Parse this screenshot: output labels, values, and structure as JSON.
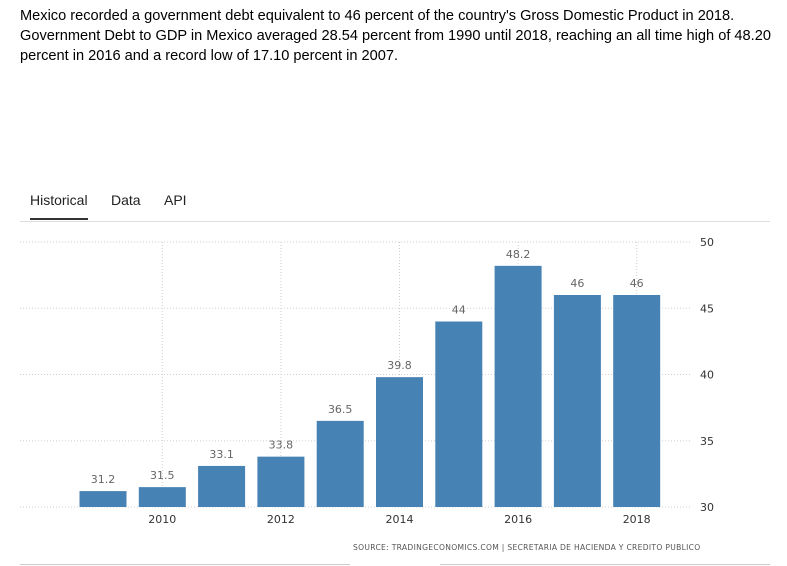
{
  "description": "Mexico recorded a government debt equivalent to 46 percent of the country's Gross Domestic Product in 2018. Government Debt to GDP in Mexico averaged 28.54 percent from 1990 until 2018, reaching an all time high of 48.20 percent in 2016 and a record low of 17.10 percent in 2007.",
  "tabs": [
    {
      "label": "Historical",
      "active": true
    },
    {
      "label": "Data",
      "active": false
    },
    {
      "label": "API",
      "active": false
    }
  ],
  "source": "SOURCE: TRADINGECONOMICS.COM | SECRETARIA DE HACIENDA Y CREDITO PUBLICO",
  "colors": {
    "bar": "#4682b4"
  },
  "chart_data": {
    "type": "bar",
    "title": "",
    "xlabel": "",
    "ylabel": "",
    "categories": [
      "2009",
      "2010",
      "2011",
      "2012",
      "2013",
      "2014",
      "2015",
      "2016",
      "2017",
      "2018"
    ],
    "values": [
      31.2,
      31.5,
      33.1,
      33.8,
      36.5,
      39.8,
      44,
      48.2,
      46,
      46
    ],
    "data_labels": [
      "31.2",
      "31.5",
      "33.1",
      "33.8",
      "36.5",
      "39.8",
      "44",
      "48.2",
      "46",
      "46"
    ],
    "x_tick_labels": [
      "2010",
      "2012",
      "2014",
      "2016",
      "2018"
    ],
    "y_ticks": [
      "30",
      "35",
      "40",
      "45",
      "50"
    ],
    "ylim": [
      30,
      50
    ],
    "y_axis_position": "right",
    "grid": true
  }
}
